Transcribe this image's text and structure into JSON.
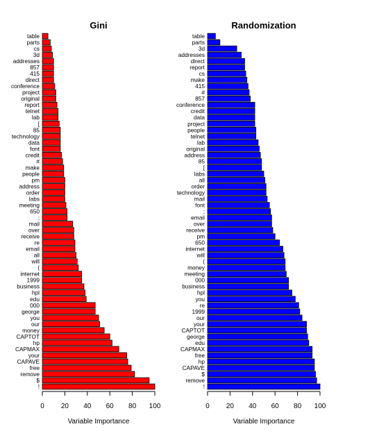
{
  "chart_data": [
    {
      "type": "bar",
      "orientation": "horizontal",
      "title": "Gini",
      "xlabel": "Variable Importance",
      "ylabel": "",
      "xlim": [
        0,
        100
      ],
      "xticks": [
        0,
        20,
        40,
        60,
        80,
        100
      ],
      "bar_color": "#ff0000",
      "categories": [
        "table",
        "parts",
        "cs",
        "3d",
        "addresses",
        "857",
        "415",
        "direct",
        "conference",
        "project",
        "original",
        "report",
        "telnet",
        "lab",
        "[",
        "85",
        "technology",
        "data",
        "font",
        "credit",
        "#",
        "make",
        "people",
        "pm",
        "address",
        "order",
        "labs",
        "meeting",
        "650",
        ";",
        "mail",
        "over",
        "receive",
        "re",
        "email",
        "all",
        "will",
        "(",
        "internet",
        "1999",
        "business",
        "hpl",
        "edu",
        "000",
        "george",
        "you",
        "our",
        "money",
        "CAPTOT",
        "hp",
        "CAPMAX",
        "your",
        "CAPAVE",
        "free",
        "remove",
        "$",
        "!"
      ],
      "values": [
        5,
        7,
        8,
        9,
        10,
        10,
        10,
        10,
        11,
        12,
        12,
        13,
        14,
        14,
        15,
        16,
        16,
        16,
        16,
        17,
        18,
        19,
        19,
        20,
        20,
        20,
        20,
        21,
        22,
        22,
        27,
        28,
        28,
        29,
        29,
        30,
        31,
        32,
        35,
        35,
        37,
        38,
        39,
        47,
        47,
        50,
        51,
        55,
        60,
        62,
        68,
        75,
        76,
        79,
        82,
        95,
        100
      ]
    },
    {
      "type": "bar",
      "orientation": "horizontal",
      "title": "Randomization",
      "xlabel": "Variable Importance",
      "ylabel": "",
      "xlim": [
        0,
        100
      ],
      "xticks": [
        0,
        20,
        40,
        60,
        80,
        100
      ],
      "bar_color": "#0000ff",
      "categories": [
        "table",
        "parts",
        "3d",
        "addresses",
        "direct",
        "report",
        "cs",
        "make",
        "415",
        "#",
        "857",
        "conference",
        "credit",
        "data",
        "project",
        "people",
        "telnet",
        "lab",
        "original",
        "address",
        "85",
        "[",
        "labs",
        "all",
        "order",
        "technology",
        "mail",
        "font",
        ";",
        "email",
        "over",
        "receive",
        "pm",
        "650",
        "internet",
        "will",
        "(",
        "money",
        "meeting",
        "000",
        "business",
        "hpl",
        "you",
        "re",
        "1999",
        "our",
        "your",
        "CAPTOT",
        "george",
        "edu",
        "CAPMAX",
        "free",
        "hp",
        "CAPAVE",
        "$",
        "remove",
        "!"
      ],
      "values": [
        7,
        11,
        26,
        30,
        33,
        33,
        34,
        35,
        36,
        37,
        38,
        42,
        42,
        42,
        42,
        43,
        43,
        45,
        46,
        47,
        48,
        48,
        50,
        51,
        52,
        52,
        53,
        55,
        56,
        57,
        57,
        58,
        60,
        64,
        67,
        68,
        69,
        69,
        70,
        72,
        72,
        75,
        78,
        81,
        82,
        84,
        88,
        88,
        89,
        90,
        93,
        93,
        95,
        95,
        96,
        97,
        100
      ]
    }
  ]
}
